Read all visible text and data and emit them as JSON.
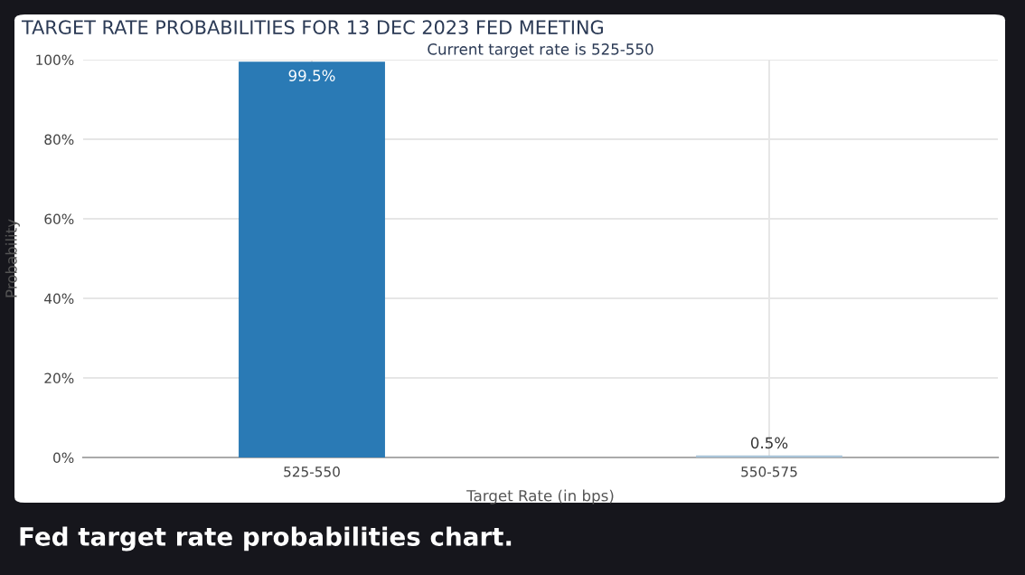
{
  "chart_data": {
    "type": "bar",
    "title": "TARGET RATE PROBABILITIES FOR 13 DEC 2023 FED MEETING",
    "subtitle": "Current target rate is 525-550",
    "xlabel": "Target Rate (in bps)",
    "ylabel": "Probability",
    "categories": [
      "525-550",
      "550-575"
    ],
    "values": [
      99.5,
      0.5
    ],
    "colors": [
      "#2a7ab5",
      "#a9c4d8"
    ],
    "value_labels": [
      "99.5%",
      "0.5%"
    ],
    "ylim": [
      0,
      100
    ],
    "yticks": [
      {
        "value": 0,
        "label": "0%"
      },
      {
        "value": 20,
        "label": "20%"
      },
      {
        "value": 40,
        "label": "40%"
      },
      {
        "value": 60,
        "label": "60%"
      },
      {
        "value": 80,
        "label": "80%"
      },
      {
        "value": 100,
        "label": "100%"
      }
    ],
    "grid": true,
    "annotations": [
      "Fed target rate probabilities chart."
    ]
  }
}
